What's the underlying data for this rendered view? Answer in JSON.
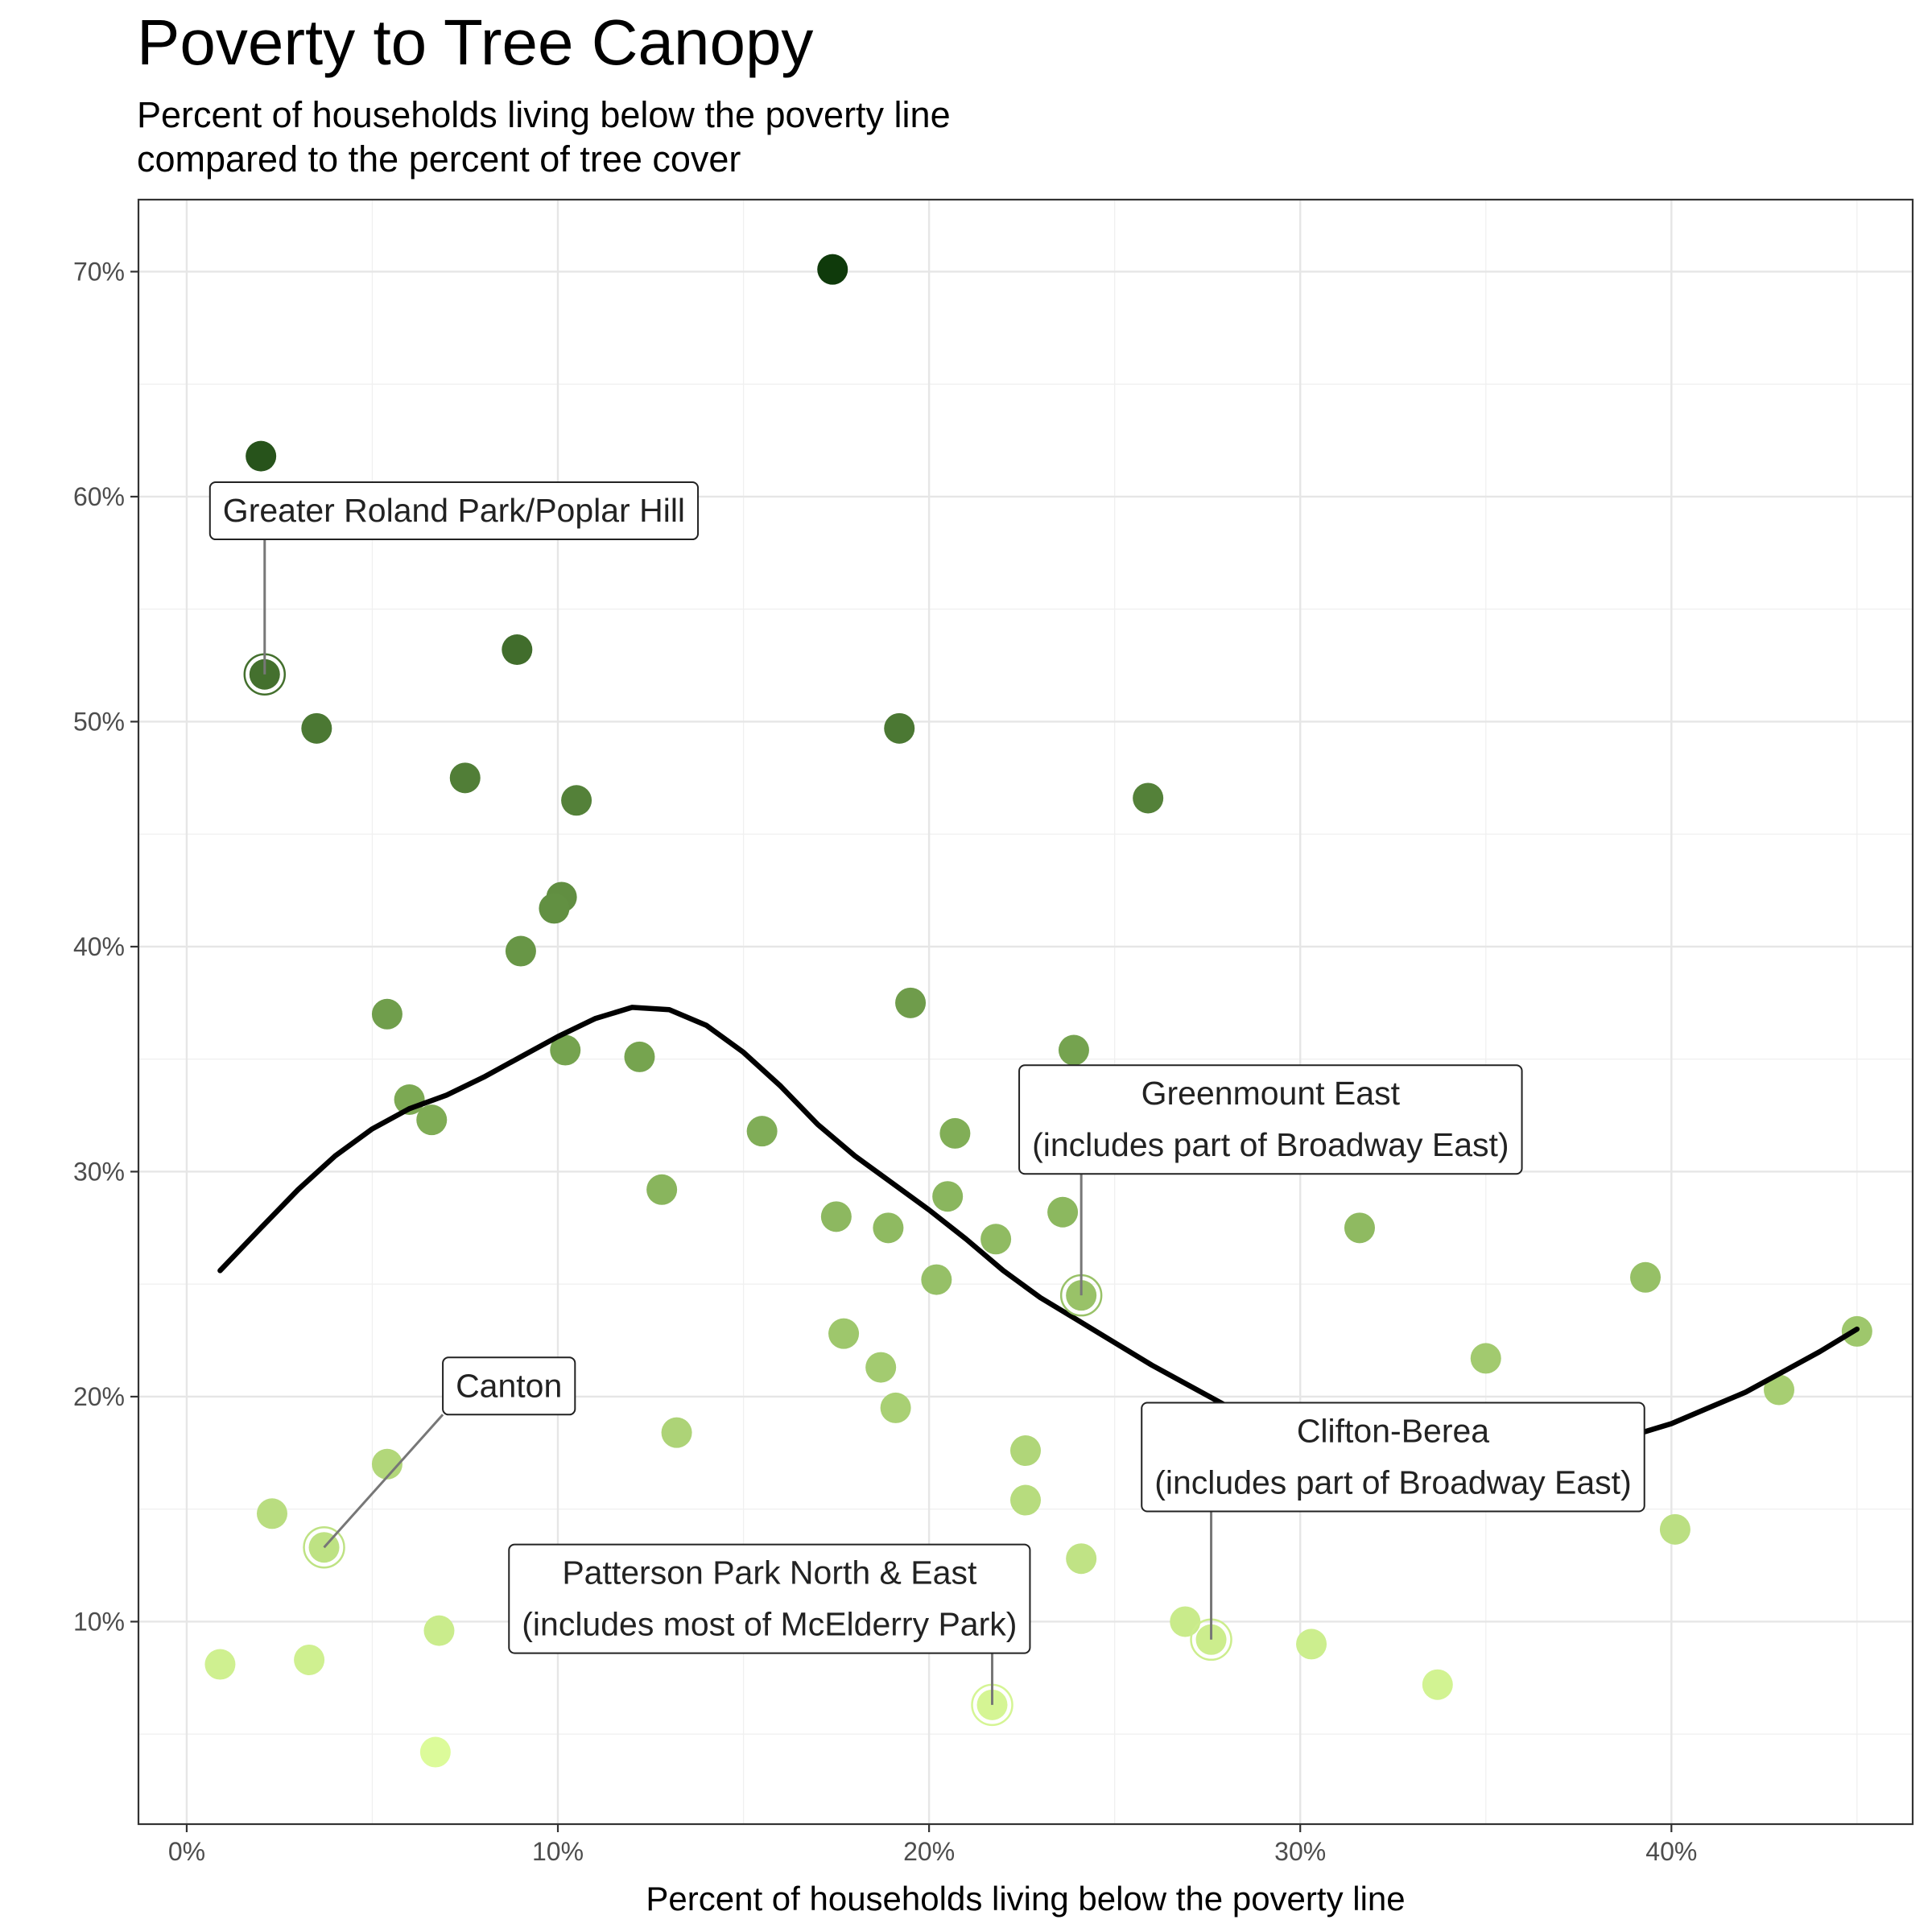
{
  "chart_data": {
    "type": "scatter",
    "title": "Poverty to Tree Canopy",
    "subtitle": [
      "Percent of households living below the poverty line",
      "compared to the percent of tree cover"
    ],
    "xlabel": "Percent of households living below the poverty line",
    "ylabel": "",
    "xlim": [
      -1.3,
      46.5
    ],
    "ylim": [
      1,
      73.2
    ],
    "x_ticks": [
      0,
      10,
      20,
      30,
      40
    ],
    "x_tick_labels": [
      "0%",
      "10%",
      "20%",
      "30%",
      "40%"
    ],
    "y_ticks": [
      10,
      20,
      30,
      40,
      50,
      60,
      70
    ],
    "y_tick_labels": [
      "10%",
      "20%",
      "30%",
      "40%",
      "50%",
      "60%",
      "70%"
    ],
    "grid": true,
    "color_scale": {
      "low": "#ddfc9a",
      "mid": "#7aa852",
      "high": "#0f3a0b",
      "min": 4,
      "max": 70
    },
    "points": [
      {
        "x": 17.4,
        "y": 70.1
      },
      {
        "x": 2.0,
        "y": 61.8
      },
      {
        "x": 2.1,
        "y": 52.1
      },
      {
        "x": 8.9,
        "y": 53.2
      },
      {
        "x": 3.5,
        "y": 49.7
      },
      {
        "x": 19.2,
        "y": 49.7
      },
      {
        "x": 7.5,
        "y": 47.5
      },
      {
        "x": 10.5,
        "y": 46.5
      },
      {
        "x": 25.9,
        "y": 46.6
      },
      {
        "x": 10.1,
        "y": 42.2
      },
      {
        "x": 9.9,
        "y": 41.7
      },
      {
        "x": 9.0,
        "y": 39.8
      },
      {
        "x": 19.5,
        "y": 37.5
      },
      {
        "x": 5.4,
        "y": 37.0
      },
      {
        "x": 10.2,
        "y": 35.4
      },
      {
        "x": 12.2,
        "y": 35.1
      },
      {
        "x": 23.9,
        "y": 35.4
      },
      {
        "x": 6.0,
        "y": 33.2
      },
      {
        "x": 6.6,
        "y": 32.3
      },
      {
        "x": 15.5,
        "y": 31.8
      },
      {
        "x": 20.7,
        "y": 31.7
      },
      {
        "x": 12.8,
        "y": 29.2
      },
      {
        "x": 20.5,
        "y": 28.9
      },
      {
        "x": 23.6,
        "y": 28.2
      },
      {
        "x": 17.5,
        "y": 28.0
      },
      {
        "x": 18.9,
        "y": 27.5
      },
      {
        "x": 31.6,
        "y": 27.5
      },
      {
        "x": 21.8,
        "y": 27.0
      },
      {
        "x": 20.2,
        "y": 25.2
      },
      {
        "x": 39.3,
        "y": 25.3
      },
      {
        "x": 24.1,
        "y": 24.5
      },
      {
        "x": 45.0,
        "y": 22.9
      },
      {
        "x": 17.7,
        "y": 22.8
      },
      {
        "x": 35.0,
        "y": 21.7
      },
      {
        "x": 18.7,
        "y": 21.3
      },
      {
        "x": 42.9,
        "y": 20.3
      },
      {
        "x": 19.1,
        "y": 19.5
      },
      {
        "x": 13.2,
        "y": 18.4
      },
      {
        "x": 35.8,
        "y": 18.0
      },
      {
        "x": 22.6,
        "y": 17.6
      },
      {
        "x": 5.4,
        "y": 17.0
      },
      {
        "x": 22.6,
        "y": 15.4
      },
      {
        "x": 2.3,
        "y": 14.8
      },
      {
        "x": 40.1,
        "y": 14.1
      },
      {
        "x": 3.7,
        "y": 13.3
      },
      {
        "x": 24.1,
        "y": 12.8
      },
      {
        "x": 26.9,
        "y": 10.0
      },
      {
        "x": 6.8,
        "y": 9.6
      },
      {
        "x": 27.6,
        "y": 9.2
      },
      {
        "x": 30.3,
        "y": 9.0
      },
      {
        "x": 3.3,
        "y": 8.3
      },
      {
        "x": 0.9,
        "y": 8.1
      },
      {
        "x": 33.7,
        "y": 7.2
      },
      {
        "x": 21.7,
        "y": 6.3
      },
      {
        "x": 6.7,
        "y": 4.2
      }
    ],
    "smooth_line": [
      {
        "x": 0.9,
        "y": 25.6
      },
      {
        "x": 2,
        "y": 27.5
      },
      {
        "x": 3,
        "y": 29.2
      },
      {
        "x": 4,
        "y": 30.7
      },
      {
        "x": 5,
        "y": 31.9
      },
      {
        "x": 6,
        "y": 32.8
      },
      {
        "x": 7,
        "y": 33.4
      },
      {
        "x": 8,
        "y": 34.2
      },
      {
        "x": 9,
        "y": 35.1
      },
      {
        "x": 10,
        "y": 36.0
      },
      {
        "x": 11,
        "y": 36.8
      },
      {
        "x": 12,
        "y": 37.3
      },
      {
        "x": 13,
        "y": 37.2
      },
      {
        "x": 14,
        "y": 36.5
      },
      {
        "x": 15,
        "y": 35.3
      },
      {
        "x": 16,
        "y": 33.8
      },
      {
        "x": 17,
        "y": 32.1
      },
      {
        "x": 18,
        "y": 30.7
      },
      {
        "x": 19,
        "y": 29.5
      },
      {
        "x": 20,
        "y": 28.3
      },
      {
        "x": 21,
        "y": 27.0
      },
      {
        "x": 22,
        "y": 25.6
      },
      {
        "x": 23,
        "y": 24.4
      },
      {
        "x": 24,
        "y": 23.4
      },
      {
        "x": 25,
        "y": 22.4
      },
      {
        "x": 26,
        "y": 21.4
      },
      {
        "x": 27,
        "y": 20.5
      },
      {
        "x": 28,
        "y": 19.6
      },
      {
        "x": 29,
        "y": 18.8
      },
      {
        "x": 30,
        "y": 18.1
      },
      {
        "x": 31,
        "y": 17.5
      },
      {
        "x": 32,
        "y": 17.1
      },
      {
        "x": 33,
        "y": 16.8
      },
      {
        "x": 34,
        "y": 16.7
      },
      {
        "x": 35,
        "y": 16.8
      },
      {
        "x": 36,
        "y": 17.0
      },
      {
        "x": 37,
        "y": 17.4
      },
      {
        "x": 38,
        "y": 17.8
      },
      {
        "x": 39,
        "y": 18.3
      },
      {
        "x": 40,
        "y": 18.8
      },
      {
        "x": 41,
        "y": 19.5
      },
      {
        "x": 42,
        "y": 20.2
      },
      {
        "x": 43,
        "y": 21.1
      },
      {
        "x": 44,
        "y": 22.0
      },
      {
        "x": 45,
        "y": 23.0
      }
    ],
    "annotations": [
      {
        "lines": [
          "Greater Roland Park/Poplar Hill"
        ],
        "point": {
          "x": 2.1,
          "y": 52.1
        },
        "label_at": {
          "x": 7.2,
          "y": 58.1
        },
        "align": "center"
      },
      {
        "lines": [
          "Greenmount East",
          "(includes part of Broadway East)"
        ],
        "point": {
          "x": 24.1,
          "y": 24.5
        },
        "label_at": {
          "x": 29.2,
          "y": 29.9
        },
        "align": "center"
      },
      {
        "lines": [
          "Canton"
        ],
        "point": {
          "x": 3.7,
          "y": 13.3
        },
        "label_at": {
          "x": 6.9,
          "y": 19.2
        },
        "align": "left"
      },
      {
        "lines": [
          "Clifton-Berea",
          "(includes part of Broadway East)"
        ],
        "point": {
          "x": 27.6,
          "y": 9.2
        },
        "label_at": {
          "x": 32.5,
          "y": 14.9
        },
        "align": "center"
      },
      {
        "lines": [
          "Patterson Park North & East",
          "(includes most of McElderry Park)"
        ],
        "point": {
          "x": 21.7,
          "y": 6.3
        },
        "label_at": {
          "x": 15.7,
          "y": 8.6
        },
        "align": "center"
      }
    ]
  }
}
